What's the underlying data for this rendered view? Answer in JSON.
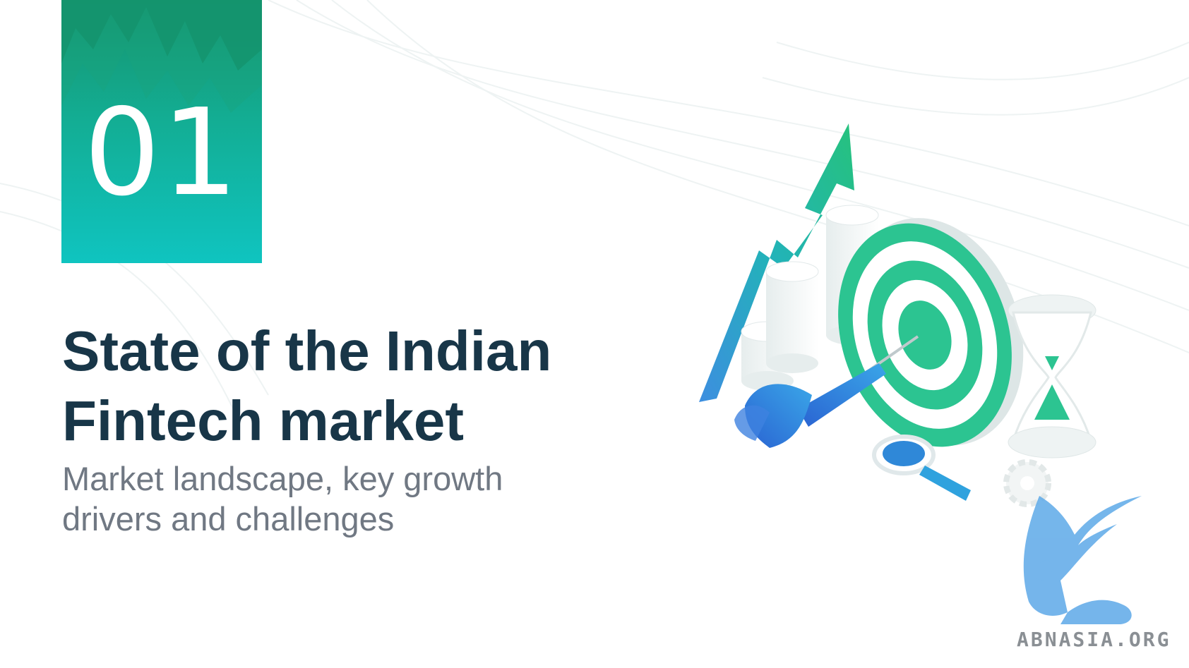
{
  "section": {
    "number": "01"
  },
  "title": {
    "line1": "State of the Indian",
    "line2": "Fintech market"
  },
  "subtitle": {
    "line1": "Market landscape, key growth",
    "line2": "drivers and challenges"
  },
  "watermark": {
    "text": "ABNASIA.ORG"
  },
  "colors": {
    "tile_top": "#15936d",
    "tile_bottom": "#0fc4c0",
    "title": "#183648",
    "subtitle": "#707883",
    "accent_green": "#26c38f",
    "accent_blue": "#2f88d8"
  },
  "icons": [
    "growth-arrow-icon",
    "bar-cylinders-icon",
    "target-icon",
    "dart-icon",
    "hourglass-icon",
    "magnifier-icon",
    "gear-icon",
    "griffin-logo-icon"
  ]
}
